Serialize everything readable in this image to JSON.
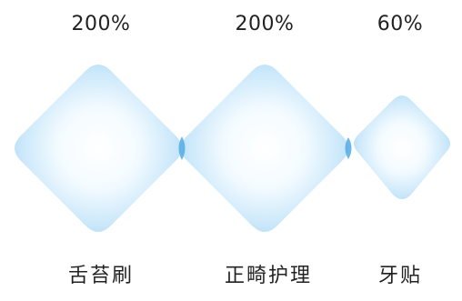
{
  "items": [
    {
      "percent": "200%",
      "label": "舌苔刷",
      "value_percent": 200
    },
    {
      "percent": "200%",
      "label": "正畸护理",
      "value_percent": 200
    },
    {
      "percent": "60%",
      "label": "牙贴",
      "value_percent": 60
    }
  ],
  "colors": {
    "diamond_edge": "#a8d6f4",
    "diamond_center": "#ffffff",
    "overlap": "#5aaee6",
    "text": "#222222"
  }
}
